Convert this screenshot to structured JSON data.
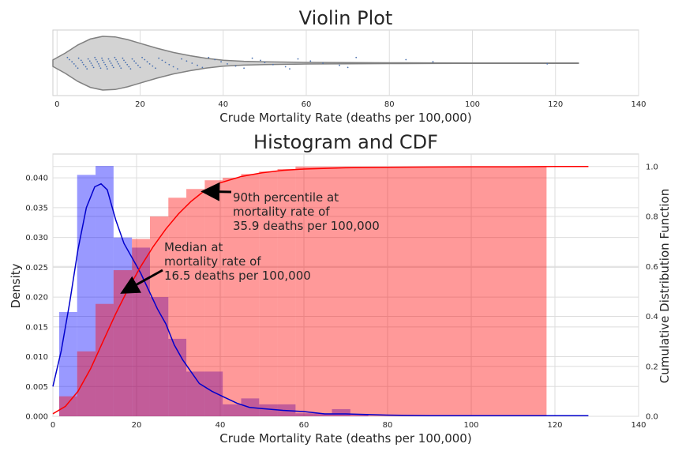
{
  "chart_data": [
    {
      "type": "violin",
      "title": "Violin Plot",
      "xlabel": "Crude Mortality Rate (deaths per 100,000)",
      "xlim": [
        -1,
        140
      ],
      "xticks": [
        "0",
        "20",
        "40",
        "60",
        "80",
        "100",
        "120",
        "140"
      ],
      "grid": true,
      "colors": {
        "body": "#d3d3d3",
        "outline": "#808080",
        "points": "#4c72b0"
      },
      "density_profile": {
        "x": [
          -1,
          2,
          5,
          8,
          11,
          14,
          17,
          20,
          24,
          28,
          32,
          36,
          40,
          45,
          50,
          60,
          70,
          80,
          90,
          100,
          110,
          118,
          125.5
        ],
        "half_width": [
          0.12,
          0.38,
          0.68,
          0.9,
          1.0,
          0.98,
          0.88,
          0.74,
          0.56,
          0.4,
          0.28,
          0.18,
          0.11,
          0.07,
          0.05,
          0.03,
          0.02,
          0.015,
          0.012,
          0.01,
          0.01,
          0.01,
          0.01
        ]
      },
      "points_x": [
        2.5,
        3,
        3.6,
        4.1,
        4.5,
        5,
        5.2,
        5.8,
        6.1,
        6.4,
        6.9,
        7.2,
        7.5,
        7.9,
        8.2,
        8.5,
        8.8,
        9.1,
        9.4,
        9.7,
        10,
        10.2,
        10.5,
        10.8,
        11,
        11.3,
        11.6,
        11.9,
        12.1,
        12.4,
        12.7,
        13,
        13.3,
        13.6,
        13.9,
        14.2,
        14.5,
        14.8,
        15.1,
        15.4,
        15.8,
        16.1,
        16.5,
        16.9,
        17.3,
        17.7,
        18.1,
        18.6,
        19,
        19.5,
        20,
        20.5,
        21.1,
        21.7,
        22.3,
        23,
        23.7,
        24.5,
        25.3,
        26.1,
        27,
        28,
        29,
        30,
        31.2,
        32.5,
        33.8,
        35,
        36.5,
        38,
        39.5,
        41,
        43,
        45,
        47,
        49,
        50,
        52,
        55,
        56,
        58,
        61,
        64,
        68,
        70,
        72,
        84,
        90.5,
        118
      ],
      "annotations": []
    },
    {
      "type": "histogram+cdf",
      "title": "Histogram and CDF",
      "xlabel": "Crude Mortality Rate (deaths per 100,000)",
      "ylabel": "Density",
      "y2label": "Cumulative Distribution Function",
      "xlim": [
        0,
        140
      ],
      "ylim": [
        0,
        0.044
      ],
      "y2lim": [
        0,
        1.05
      ],
      "xticks": [
        "0",
        "20",
        "40",
        "60",
        "80",
        "100",
        "120",
        "140"
      ],
      "yticks": [
        "0.000",
        "0.005",
        "0.010",
        "0.015",
        "0.020",
        "0.025",
        "0.030",
        "0.035",
        "0.040"
      ],
      "y2ticks": [
        "0.0",
        "0.2",
        "0.4",
        "0.6",
        "0.8",
        "1.0"
      ],
      "grid": true,
      "colors": {
        "hist": "#0000ff",
        "hist_alpha": 0.4,
        "kde": "#0000cc",
        "cdf_fill": "#ff0000",
        "cdf_alpha": 0.4,
        "cdf_line": "#ff0000"
      },
      "histogram_bins": [
        {
          "x0": 1.5,
          "x1": 5.8,
          "value": 0.0175
        },
        {
          "x0": 5.8,
          "x1": 10.2,
          "value": 0.0405
        },
        {
          "x0": 10.2,
          "x1": 14.5,
          "value": 0.042
        },
        {
          "x0": 14.5,
          "x1": 18.9,
          "value": 0.03
        },
        {
          "x0": 18.9,
          "x1": 23.2,
          "value": 0.0283
        },
        {
          "x0": 23.2,
          "x1": 27.6,
          "value": 0.02
        },
        {
          "x0": 27.6,
          "x1": 31.9,
          "value": 0.013
        },
        {
          "x0": 31.9,
          "x1": 36.3,
          "value": 0.0075
        },
        {
          "x0": 36.3,
          "x1": 40.6,
          "value": 0.0075
        },
        {
          "x0": 40.6,
          "x1": 45.0,
          "value": 0.002
        },
        {
          "x0": 45.0,
          "x1": 49.3,
          "value": 0.003
        },
        {
          "x0": 49.3,
          "x1": 53.7,
          "value": 0.002
        },
        {
          "x0": 53.7,
          "x1": 58.0,
          "value": 0.002
        },
        {
          "x0": 58.0,
          "x1": 62.4,
          "value": 0.0005
        },
        {
          "x0": 62.4,
          "x1": 66.7,
          "value": 0.0005
        },
        {
          "x0": 66.7,
          "x1": 71.1,
          "value": 0.0012
        },
        {
          "x0": 71.1,
          "x1": 75.4,
          "value": 0.0002
        }
      ],
      "kde_curve": {
        "x": [
          0,
          2,
          4,
          6,
          8,
          10,
          11.5,
          13,
          15,
          17,
          19,
          21,
          23,
          25,
          27,
          29,
          31,
          33,
          35,
          38,
          41,
          44,
          47,
          50,
          55,
          60,
          65,
          70,
          75,
          80,
          90,
          100,
          110,
          120,
          128
        ],
        "y": [
          0.005,
          0.011,
          0.019,
          0.028,
          0.035,
          0.0385,
          0.039,
          0.038,
          0.033,
          0.029,
          0.0265,
          0.024,
          0.021,
          0.018,
          0.0155,
          0.012,
          0.0095,
          0.0075,
          0.0055,
          0.0042,
          0.0032,
          0.0022,
          0.0015,
          0.0013,
          0.001,
          0.0008,
          0.0004,
          0.0004,
          0.0003,
          0.0002,
          0.0001,
          0.0001,
          0.0001,
          0.0001,
          0.0001
        ]
      },
      "cdf_fill_bins": [
        {
          "x0": 1.5,
          "x1": 5.8,
          "value": 0.08
        },
        {
          "x0": 5.8,
          "x1": 10.2,
          "value": 0.26
        },
        {
          "x0": 10.2,
          "x1": 14.5,
          "value": 0.45
        },
        {
          "x0": 14.5,
          "x1": 18.9,
          "value": 0.585
        },
        {
          "x0": 18.9,
          "x1": 23.2,
          "value": 0.71
        },
        {
          "x0": 23.2,
          "x1": 27.6,
          "value": 0.8
        },
        {
          "x0": 27.6,
          "x1": 31.9,
          "value": 0.875
        },
        {
          "x0": 31.9,
          "x1": 36.3,
          "value": 0.91
        },
        {
          "x0": 36.3,
          "x1": 40.6,
          "value": 0.945
        },
        {
          "x0": 40.6,
          "x1": 45.0,
          "value": 0.955
        },
        {
          "x0": 45.0,
          "x1": 49.3,
          "value": 0.97
        },
        {
          "x0": 49.3,
          "x1": 53.7,
          "value": 0.98
        },
        {
          "x0": 53.7,
          "x1": 58.0,
          "value": 0.99
        },
        {
          "x0": 58.0,
          "x1": 118.0,
          "value": 1.0
        }
      ],
      "cdf_curve": {
        "x": [
          0,
          3,
          6,
          9,
          12,
          15,
          18,
          21,
          24,
          27,
          30,
          33,
          36,
          40,
          45,
          50,
          55,
          60,
          70,
          80,
          90,
          100,
          110,
          120,
          128
        ],
        "y": [
          0.01,
          0.04,
          0.1,
          0.19,
          0.3,
          0.41,
          0.51,
          0.6,
          0.68,
          0.75,
          0.81,
          0.86,
          0.9,
          0.935,
          0.96,
          0.975,
          0.985,
          0.99,
          0.995,
          0.997,
          0.998,
          0.999,
          0.999,
          1.0,
          1.0
        ]
      },
      "annotations": [
        {
          "text_lines": [
            "90th percentile at",
            "mortality rate of",
            "35.9 deaths per 100,000"
          ],
          "x": 35.9,
          "y2": 0.9
        },
        {
          "text_lines": [
            "Median at",
            "mortality rate of",
            "16.5 deaths per 100,000"
          ],
          "x": 16.5,
          "y2": 0.5
        }
      ]
    }
  ]
}
